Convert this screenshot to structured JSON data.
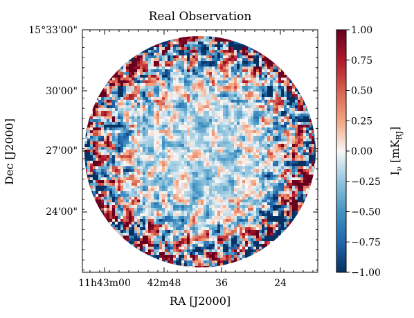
{
  "chart_data": {
    "type": "heatmap",
    "title": "Real Observation",
    "xlabel": "RA [J2000]",
    "ylabel": "Dec [J2000]",
    "x_ticks": [
      "11h43m00",
      "42m48",
      "36",
      "24"
    ],
    "y_ticks": [
      "15°33'00\"",
      "30'00\"",
      "27'00\"",
      "24'00\""
    ],
    "colorbar": {
      "label_main": "I",
      "label_sub": "ν",
      "label_unit": " [mK",
      "label_unit_sub": "RJ",
      "label_close": "]",
      "cmap": "RdBu_r",
      "vmin": -1.0,
      "vmax": 1.0,
      "ticks": [
        "1.00",
        "0.75",
        "0.50",
        "0.25",
        "0.00",
        "−0.25",
        "−0.50",
        "−0.75",
        "−1.00"
      ]
    },
    "map": {
      "shape": "circular field, masked outside",
      "center_value_trend": "noise near 0 (light blue/white) in the center, saturating to ±1 (dark red/dark blue) toward the edge"
    }
  },
  "colors": {
    "cmap_low": "#053061",
    "cmap_mid": "#f7f7f7",
    "cmap_high": "#67001f"
  }
}
